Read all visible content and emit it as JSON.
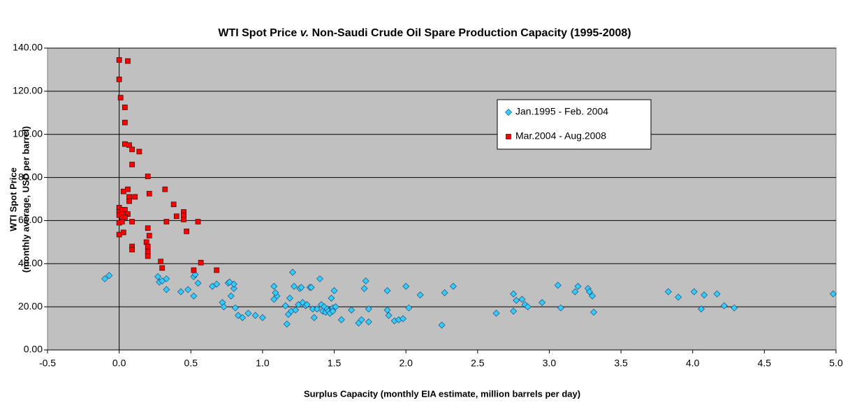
{
  "chart_data": {
    "type": "scatter",
    "title": [
      "WTI Spot Price ",
      "v.",
      " Non-Saudi Crude Oil Spare Production Capacity (1995-2008)"
    ],
    "xlabel": "Surplus Capacity (monthly EIA estimate, million barrels per day)",
    "ylabel": [
      "WTI Spot Price",
      "(monthly average, USD per barrel)"
    ],
    "xlim": [
      -0.5,
      5.0
    ],
    "xticks": [
      -0.5,
      {
        "value": 0,
        "label": "0.0"
      },
      0.5,
      {
        "value": 1,
        "label": "1.0"
      },
      1.5,
      {
        "value": 2,
        "label": "2.0"
      },
      2.5,
      {
        "value": 3,
        "label": "3.0"
      },
      3.5,
      {
        "value": 4,
        "label": "4.0"
      },
      4.5,
      {
        "value": 5,
        "label": "5.0"
      }
    ],
    "ylim": [
      0,
      140
    ],
    "yticks": [
      {
        "value": 0,
        "label": "0.00"
      },
      {
        "value": 20,
        "label": "20.00"
      },
      {
        "value": 40,
        "label": "40.00"
      },
      {
        "value": 60,
        "label": "60.00"
      },
      {
        "value": 80,
        "label": "80.00"
      },
      {
        "value": 100,
        "label": "100.00"
      },
      {
        "value": 120,
        "label": "120.00"
      },
      {
        "value": 140,
        "label": "140.00"
      }
    ],
    "grid": true,
    "legend": "upper right",
    "series": [
      {
        "name": "Jan.1995 - Feb. 2004",
        "color": "#33ccff",
        "marker": "diamond",
        "x": [
          -0.1,
          -0.07,
          0.27,
          0.28,
          0.3,
          0.33,
          0.33,
          0.43,
          0.48,
          0.52,
          0.53,
          0.52,
          0.55,
          0.65,
          0.68,
          0.72,
          0.73,
          0.76,
          0.77,
          0.78,
          0.8,
          0.8,
          0.81,
          0.83,
          0.86,
          0.9,
          0.95,
          1.0,
          1.08,
          1.08,
          1.1,
          1.09,
          1.16,
          1.17,
          1.18,
          1.19,
          1.2,
          1.21,
          1.22,
          1.23,
          1.25,
          1.26,
          1.27,
          1.28,
          1.3,
          1.31,
          1.33,
          1.34,
          1.35,
          1.36,
          1.38,
          1.4,
          1.41,
          1.42,
          1.43,
          1.44,
          1.45,
          1.46,
          1.47,
          1.48,
          1.49,
          1.49,
          1.5,
          1.51,
          1.55,
          1.62,
          1.67,
          1.69,
          1.71,
          1.72,
          1.74,
          1.74,
          1.87,
          1.87,
          1.88,
          1.92,
          1.95,
          1.98,
          2.0,
          2.02,
          2.1,
          2.25,
          2.27,
          2.33,
          2.63,
          2.75,
          2.75,
          2.77,
          2.81,
          2.83,
          2.85,
          2.95,
          3.06,
          3.08,
          3.18,
          3.2,
          3.27,
          3.28,
          3.3,
          3.31,
          3.83,
          3.9,
          4.01,
          4.06,
          4.08,
          4.17,
          4.22,
          4.29,
          4.98
        ],
        "values": [
          33,
          34.5,
          34,
          31.5,
          32,
          33,
          28,
          27,
          28,
          34,
          35,
          25,
          31,
          29.5,
          30.5,
          22,
          20,
          31,
          31.5,
          25,
          28.5,
          30.5,
          19.5,
          16,
          15,
          17,
          16,
          15,
          29.5,
          23.5,
          25,
          26.5,
          20.5,
          12,
          16.5,
          24,
          18,
          36,
          29.5,
          18.5,
          21,
          28.5,
          29,
          22,
          20.5,
          21,
          29,
          29,
          19,
          15,
          19,
          33,
          21,
          18,
          20,
          17.5,
          19,
          18,
          17,
          24,
          19.5,
          18,
          27.5,
          20,
          14,
          18.5,
          12.5,
          14,
          28.5,
          32,
          19,
          13,
          27.5,
          18.5,
          16,
          13.5,
          14,
          14.5,
          29.5,
          19.5,
          25.5,
          11.5,
          26.5,
          29.5,
          17,
          26,
          18,
          23,
          23.5,
          21,
          20,
          22,
          30,
          19.5,
          27,
          29.5,
          28.5,
          27,
          25,
          17.5,
          27,
          24.5,
          27,
          19,
          25.5,
          26,
          20.5,
          19.5,
          26
        ]
      },
      {
        "name": "Mar.2004 - Aug.2008",
        "color": "#ff0000",
        "marker": "square",
        "x": [
          0.0,
          0.06,
          0.0,
          0.01,
          0.04,
          0.04,
          0.04,
          0.07,
          0.09,
          0.14,
          0.09,
          0.2,
          0.03,
          0.06,
          0.21,
          0.32,
          0.07,
          0.07,
          0.11,
          0.38,
          0.0,
          0.0,
          0.02,
          0.04,
          0.0,
          0.02,
          0.06,
          0.02,
          0.04,
          0.0,
          0.02,
          0.09,
          0.4,
          0.45,
          0.45,
          0.45,
          0.33,
          0.55,
          0.2,
          0.0,
          0.03,
          0.21,
          0.47,
          0.19,
          0.2,
          0.09,
          0.09,
          0.2,
          0.2,
          0.57,
          0.29,
          0.3,
          0.52,
          0.68
        ],
        "values": [
          134.5,
          134,
          125.5,
          117,
          112.5,
          105.5,
          95.5,
          95,
          93,
          92,
          86,
          80.5,
          73.5,
          74.5,
          72.5,
          74.5,
          71,
          69,
          71,
          67.5,
          66,
          64,
          65,
          65,
          62.5,
          63,
          63,
          61,
          61.5,
          59,
          59.5,
          59.5,
          62,
          64,
          62.5,
          60.5,
          59.5,
          59.5,
          56.5,
          53.5,
          54.5,
          53,
          55,
          50,
          48,
          48,
          46.5,
          45.5,
          43.5,
          40.5,
          41,
          38,
          37,
          37
        ]
      }
    ]
  }
}
